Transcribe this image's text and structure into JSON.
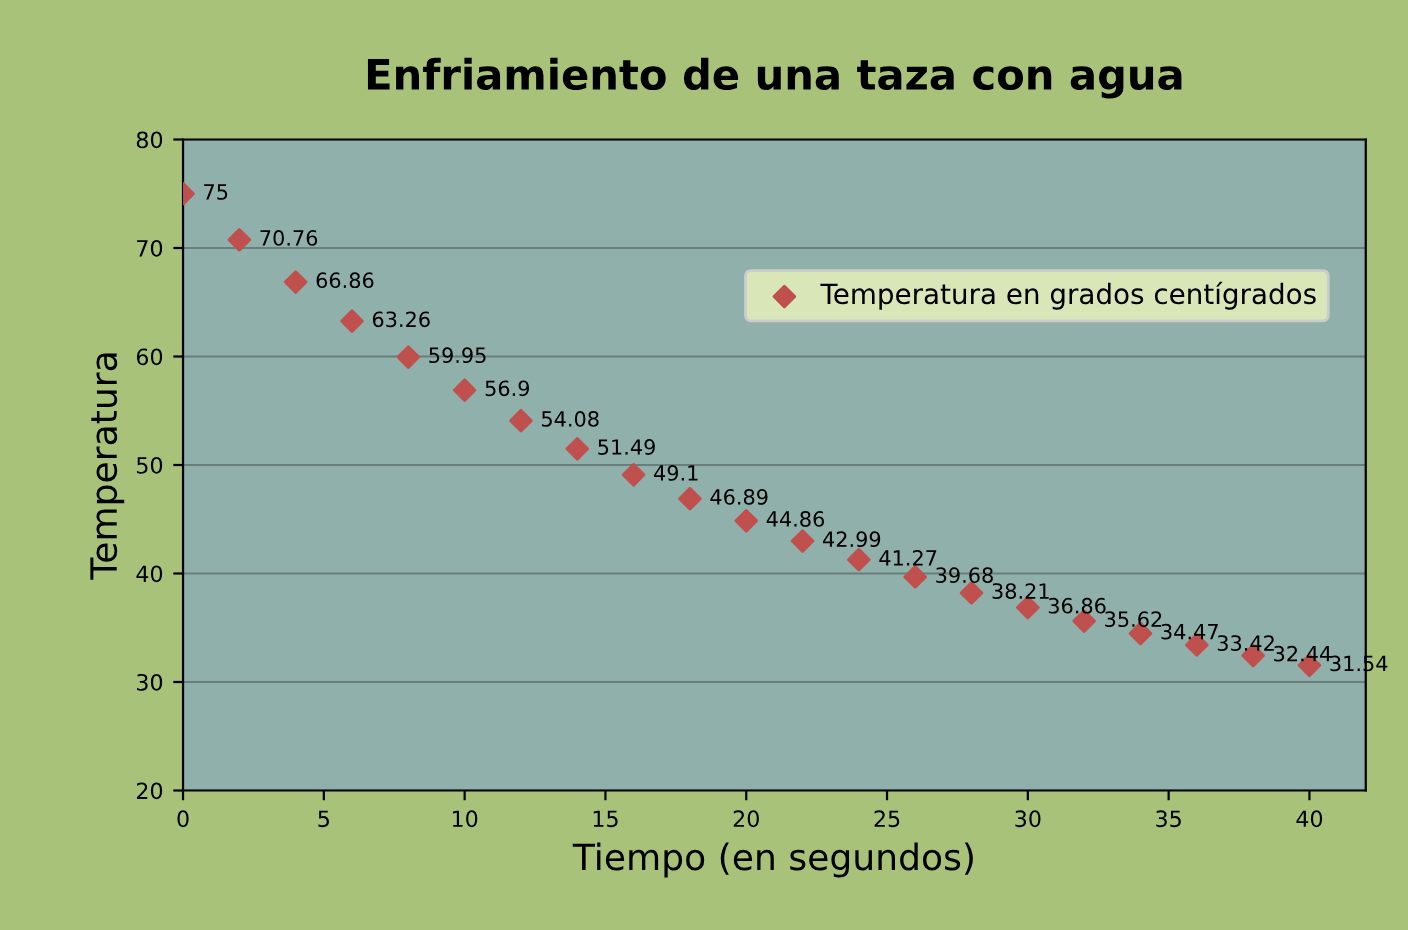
{
  "chart_data": {
    "type": "scatter",
    "title": "Enfriamiento de una taza con agua",
    "xlabel": "Tiempo (en segundos)",
    "ylabel": "Temperatura",
    "x": [
      0,
      2,
      4,
      6,
      8,
      10,
      12,
      14,
      16,
      18,
      20,
      22,
      24,
      26,
      28,
      30,
      32,
      34,
      36,
      38,
      40
    ],
    "series": [
      {
        "name": "Temperatura en grados centígrados",
        "color": "#c0504d",
        "values": [
          75,
          70.76,
          66.86,
          63.26,
          59.95,
          56.9,
          54.08,
          51.49,
          49.1,
          46.89,
          44.86,
          42.99,
          41.27,
          39.68,
          38.21,
          36.86,
          35.62,
          34.47,
          33.42,
          32.44,
          31.54
        ]
      }
    ],
    "xlim": [
      0,
      42
    ],
    "xticks": [
      0,
      5,
      10,
      15,
      20,
      25,
      30,
      35,
      40
    ],
    "ylim": [
      20,
      80
    ],
    "yticks": [
      20,
      30,
      40,
      50,
      60,
      70,
      80
    ],
    "grid": "y",
    "legend": "top right",
    "marker": "diamond",
    "data_labels": true
  }
}
